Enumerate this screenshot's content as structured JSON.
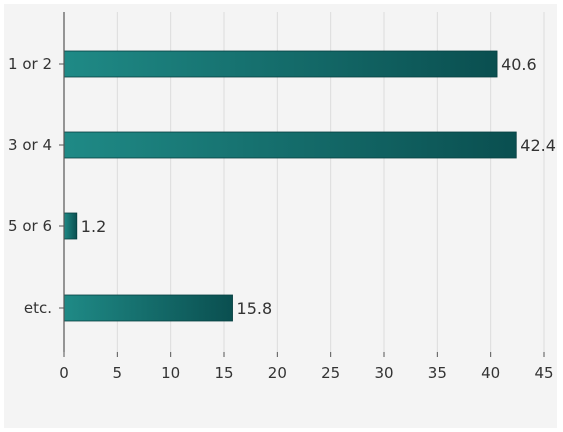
{
  "chart_data": {
    "type": "bar",
    "orientation": "horizontal",
    "title": "",
    "xlabel": "",
    "ylabel": "",
    "categories": [
      "1 or 2",
      "3 or 4",
      "5 or 6",
      "etc."
    ],
    "values": [
      40.6,
      42.4,
      1.2,
      15.8
    ],
    "value_labels": [
      "40.6",
      "42.4",
      "1.2",
      "15.8"
    ],
    "xlim": [
      0,
      45
    ],
    "xticks": [
      "0",
      "5",
      "10",
      "15",
      "20",
      "25",
      "30",
      "35",
      "40",
      "45"
    ],
    "grid": "vertical",
    "legend": "none",
    "colors": {
      "bar_light": "#1f8a86",
      "bar_dark": "#0a4f50",
      "grid": "#dcdcdc",
      "axis": "#555555",
      "background": "#f4f4f4"
    }
  }
}
